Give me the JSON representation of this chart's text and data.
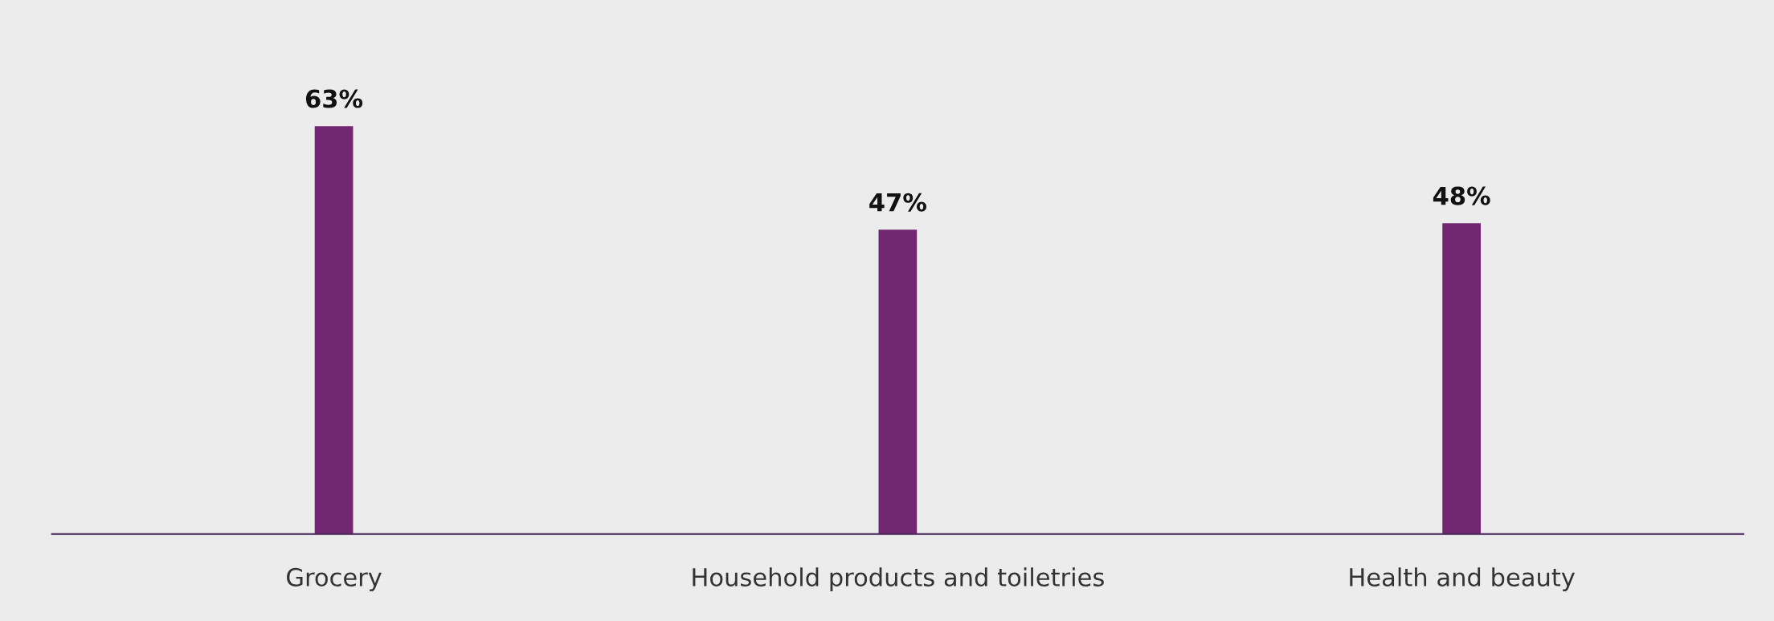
{
  "chart_data": {
    "type": "bar",
    "categories": [
      "Grocery",
      "Household products and toiletries",
      "Health and beauty"
    ],
    "values": [
      63,
      47,
      48
    ],
    "value_labels": [
      "63%",
      "47%",
      "48%"
    ],
    "color": "#722772",
    "ylim": [
      0,
      82
    ],
    "tick_labels": "x",
    "grid": false
  }
}
